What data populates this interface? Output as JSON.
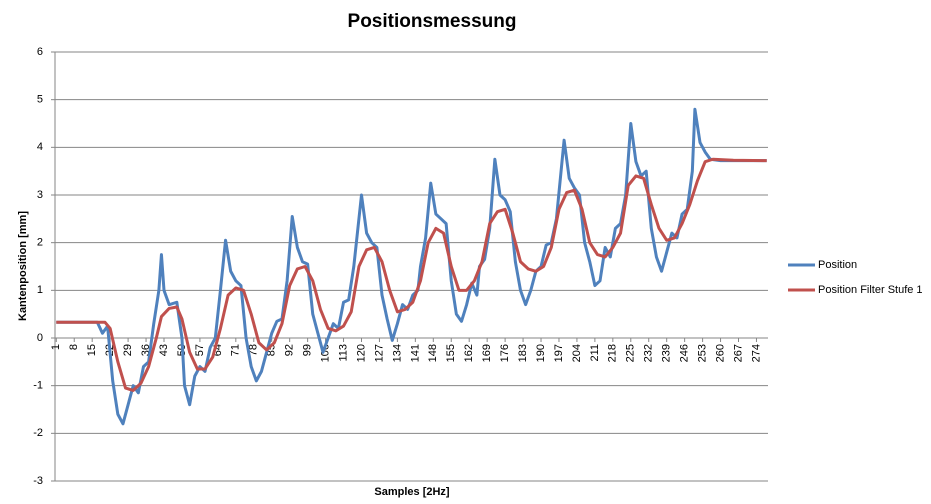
{
  "chart_data": {
    "type": "line",
    "title": "Positionsmessung",
    "x_label": "Samples [2Hz]",
    "y_label": "Kantenposition [mm]",
    "xlim": [
      0.5,
      278.5
    ],
    "xticks": [
      1,
      8,
      15,
      22,
      29,
      36,
      43,
      50,
      57,
      64,
      71,
      78,
      85,
      92,
      99,
      106,
      113,
      120,
      127,
      134,
      141,
      148,
      155,
      162,
      169,
      176,
      183,
      190,
      197,
      204,
      211,
      218,
      225,
      232,
      239,
      246,
      253,
      260,
      267,
      274
    ],
    "ylim": [
      -3,
      6
    ],
    "yticks": [
      -3,
      -2,
      -1,
      0,
      1,
      2,
      3,
      4,
      5,
      6
    ],
    "grid": true,
    "legend": "right",
    "series": [
      {
        "name": "Position",
        "color": "#4f81bd",
        "x": [
          1,
          17,
          19,
          21,
          23,
          25,
          27,
          29,
          31,
          33,
          35,
          37,
          39,
          41,
          42,
          43,
          45,
          48,
          50,
          51,
          53,
          55,
          57,
          59,
          61,
          63,
          65,
          67,
          69,
          71,
          73,
          75,
          77,
          79,
          81,
          83,
          85,
          87,
          89,
          91,
          93,
          95,
          97,
          99,
          101,
          103,
          105,
          107,
          109,
          111,
          113,
          115,
          117,
          120,
          122,
          124,
          126,
          128,
          130,
          132,
          134,
          136,
          138,
          140,
          142,
          143,
          145,
          147,
          149,
          151,
          153,
          155,
          157,
          159,
          161,
          163,
          165,
          166,
          168,
          170,
          172,
          174,
          176,
          178,
          180,
          182,
          184,
          186,
          188,
          190,
          192,
          194,
          196,
          199,
          201,
          203,
          205,
          207,
          209,
          211,
          213,
          215,
          217,
          219,
          221,
          223,
          225,
          227,
          229,
          231,
          233,
          235,
          237,
          239,
          241,
          243,
          245,
          247,
          249,
          250,
          252,
          254,
          256,
          260,
          278
        ],
        "values": [
          0.33,
          0.33,
          0.1,
          0.25,
          -0.9,
          -1.6,
          -1.8,
          -1.4,
          -1.0,
          -1.15,
          -0.6,
          -0.5,
          0.3,
          1.0,
          1.75,
          1.0,
          0.7,
          0.75,
          0.0,
          -1.0,
          -1.4,
          -0.8,
          -0.6,
          -0.7,
          -0.2,
          0.0,
          1.0,
          2.05,
          1.4,
          1.2,
          1.1,
          0.0,
          -0.6,
          -0.9,
          -0.7,
          -0.3,
          0.1,
          0.35,
          0.4,
          1.2,
          2.55,
          1.9,
          1.6,
          1.55,
          0.5,
          0.1,
          -0.3,
          0.0,
          0.3,
          0.2,
          0.75,
          0.8,
          1.5,
          3.0,
          2.2,
          2.0,
          1.9,
          0.9,
          0.4,
          -0.05,
          0.3,
          0.7,
          0.6,
          0.9,
          1.0,
          1.5,
          2.1,
          3.25,
          2.6,
          2.5,
          2.4,
          1.2,
          0.5,
          0.35,
          0.7,
          1.15,
          0.9,
          1.5,
          1.65,
          2.3,
          3.75,
          3.0,
          2.9,
          2.65,
          1.6,
          1.0,
          0.7,
          1.0,
          1.4,
          1.5,
          1.95,
          2.0,
          2.5,
          4.15,
          3.35,
          3.15,
          3.0,
          2.0,
          1.6,
          1.1,
          1.2,
          1.9,
          1.7,
          2.3,
          2.4,
          3.0,
          4.5,
          3.7,
          3.4,
          3.5,
          2.3,
          1.7,
          1.4,
          1.8,
          2.2,
          2.1,
          2.6,
          2.7,
          3.5,
          4.8,
          4.1,
          3.9,
          3.75,
          3.72,
          3.72
        ]
      },
      {
        "name": "Position Filter Stufe 1",
        "color": "#c0504d",
        "x": [
          1,
          20,
          22,
          25,
          28,
          31,
          34,
          37,
          40,
          42,
          45,
          48,
          50,
          53,
          56,
          59,
          62,
          65,
          68,
          71,
          74,
          77,
          80,
          83,
          86,
          89,
          92,
          95,
          98,
          101,
          104,
          107,
          110,
          113,
          116,
          119,
          122,
          125,
          128,
          131,
          134,
          137,
          140,
          143,
          146,
          149,
          152,
          155,
          158,
          161,
          164,
          167,
          170,
          173,
          176,
          179,
          182,
          185,
          188,
          191,
          194,
          197,
          200,
          203,
          206,
          209,
          212,
          215,
          218,
          221,
          224,
          227,
          230,
          233,
          236,
          239,
          242,
          245,
          248,
          251,
          254,
          257,
          265,
          278
        ],
        "values": [
          0.33,
          0.33,
          0.2,
          -0.5,
          -1.05,
          -1.1,
          -0.95,
          -0.6,
          0.0,
          0.45,
          0.62,
          0.65,
          0.4,
          -0.3,
          -0.65,
          -0.65,
          -0.4,
          0.2,
          0.9,
          1.05,
          1.0,
          0.5,
          -0.1,
          -0.25,
          -0.1,
          0.3,
          1.1,
          1.45,
          1.5,
          1.2,
          0.6,
          0.2,
          0.15,
          0.25,
          0.55,
          1.5,
          1.85,
          1.9,
          1.6,
          1.0,
          0.55,
          0.6,
          0.75,
          1.2,
          2.0,
          2.3,
          2.2,
          1.5,
          1.0,
          1.0,
          1.2,
          1.6,
          2.4,
          2.65,
          2.7,
          2.2,
          1.6,
          1.45,
          1.4,
          1.5,
          1.9,
          2.7,
          3.05,
          3.1,
          2.7,
          2.0,
          1.75,
          1.7,
          1.9,
          2.2,
          3.2,
          3.4,
          3.35,
          2.8,
          2.3,
          2.05,
          2.1,
          2.4,
          2.8,
          3.3,
          3.7,
          3.75,
          3.73,
          3.72
        ]
      }
    ]
  }
}
